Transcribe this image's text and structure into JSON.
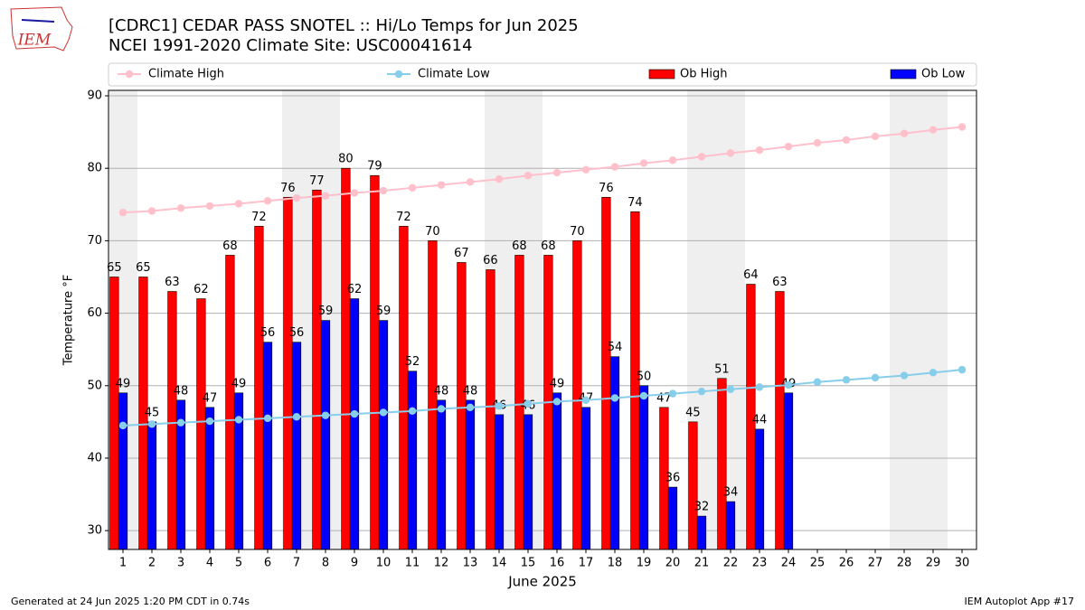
{
  "chart_data": {
    "type": "bar",
    "title": "[CDRC1] CEDAR PASS SNOTEL :: Hi/Lo Temps for Jun 2025",
    "subtitle": "NCEI 1991-2020 Climate Site: USC00041614",
    "logo": "IEM",
    "x_label": "June 2025",
    "y_label": "Temperature °F",
    "footer_left": "Generated at 24 Jun 2025 1:20 PM CDT in 0.74s",
    "footer_right": "IEM Autoplot App #17",
    "categories": [
      "1",
      "2",
      "3",
      "4",
      "5",
      "6",
      "7",
      "8",
      "9",
      "10",
      "11",
      "12",
      "13",
      "14",
      "15",
      "16",
      "17",
      "18",
      "19",
      "20",
      "21",
      "22",
      "23",
      "24",
      "25",
      "26",
      "27",
      "28",
      "29",
      "30"
    ],
    "ylim": [
      27.4,
      90.75
    ],
    "yticks": [
      30,
      40,
      50,
      60,
      70,
      80,
      90
    ],
    "grid": true,
    "series": [
      {
        "name": "Climate High",
        "type": "line",
        "color": "#ffc0cb",
        "values": [
          73.9,
          74.1,
          74.5,
          74.8,
          75.1,
          75.5,
          75.9,
          76.2,
          76.6,
          76.9,
          77.3,
          77.7,
          78.1,
          78.5,
          79.0,
          79.4,
          79.8,
          80.2,
          80.7,
          81.1,
          81.6,
          82.1,
          82.5,
          83.0,
          83.5,
          83.9,
          84.4,
          84.8,
          85.3,
          85.7
        ]
      },
      {
        "name": "Climate Low",
        "type": "line",
        "color": "#87ceeb",
        "values": [
          44.5,
          44.7,
          44.9,
          45.1,
          45.3,
          45.5,
          45.7,
          45.9,
          46.1,
          46.3,
          46.5,
          46.8,
          47.0,
          47.2,
          47.5,
          47.8,
          48.0,
          48.3,
          48.6,
          48.9,
          49.2,
          49.5,
          49.8,
          50.1,
          50.5,
          50.8,
          51.1,
          51.4,
          51.8,
          52.2
        ]
      },
      {
        "name": "Ob High",
        "type": "bar",
        "color": "#ff0000",
        "values": [
          65,
          65,
          63,
          62,
          68,
          72,
          76,
          77,
          80,
          79,
          72,
          70,
          67,
          66,
          68,
          68,
          70,
          76,
          74,
          47,
          45,
          51,
          64,
          63,
          null,
          null,
          null,
          null,
          null,
          null
        ]
      },
      {
        "name": "Ob Low",
        "type": "bar",
        "color": "#0000ff",
        "values": [
          49,
          45,
          48,
          47,
          49,
          56,
          56,
          59,
          62,
          59,
          52,
          48,
          48,
          46,
          46,
          49,
          47,
          54,
          50,
          36,
          32,
          34,
          44,
          49,
          null,
          null,
          null,
          null,
          null,
          null
        ]
      }
    ]
  }
}
